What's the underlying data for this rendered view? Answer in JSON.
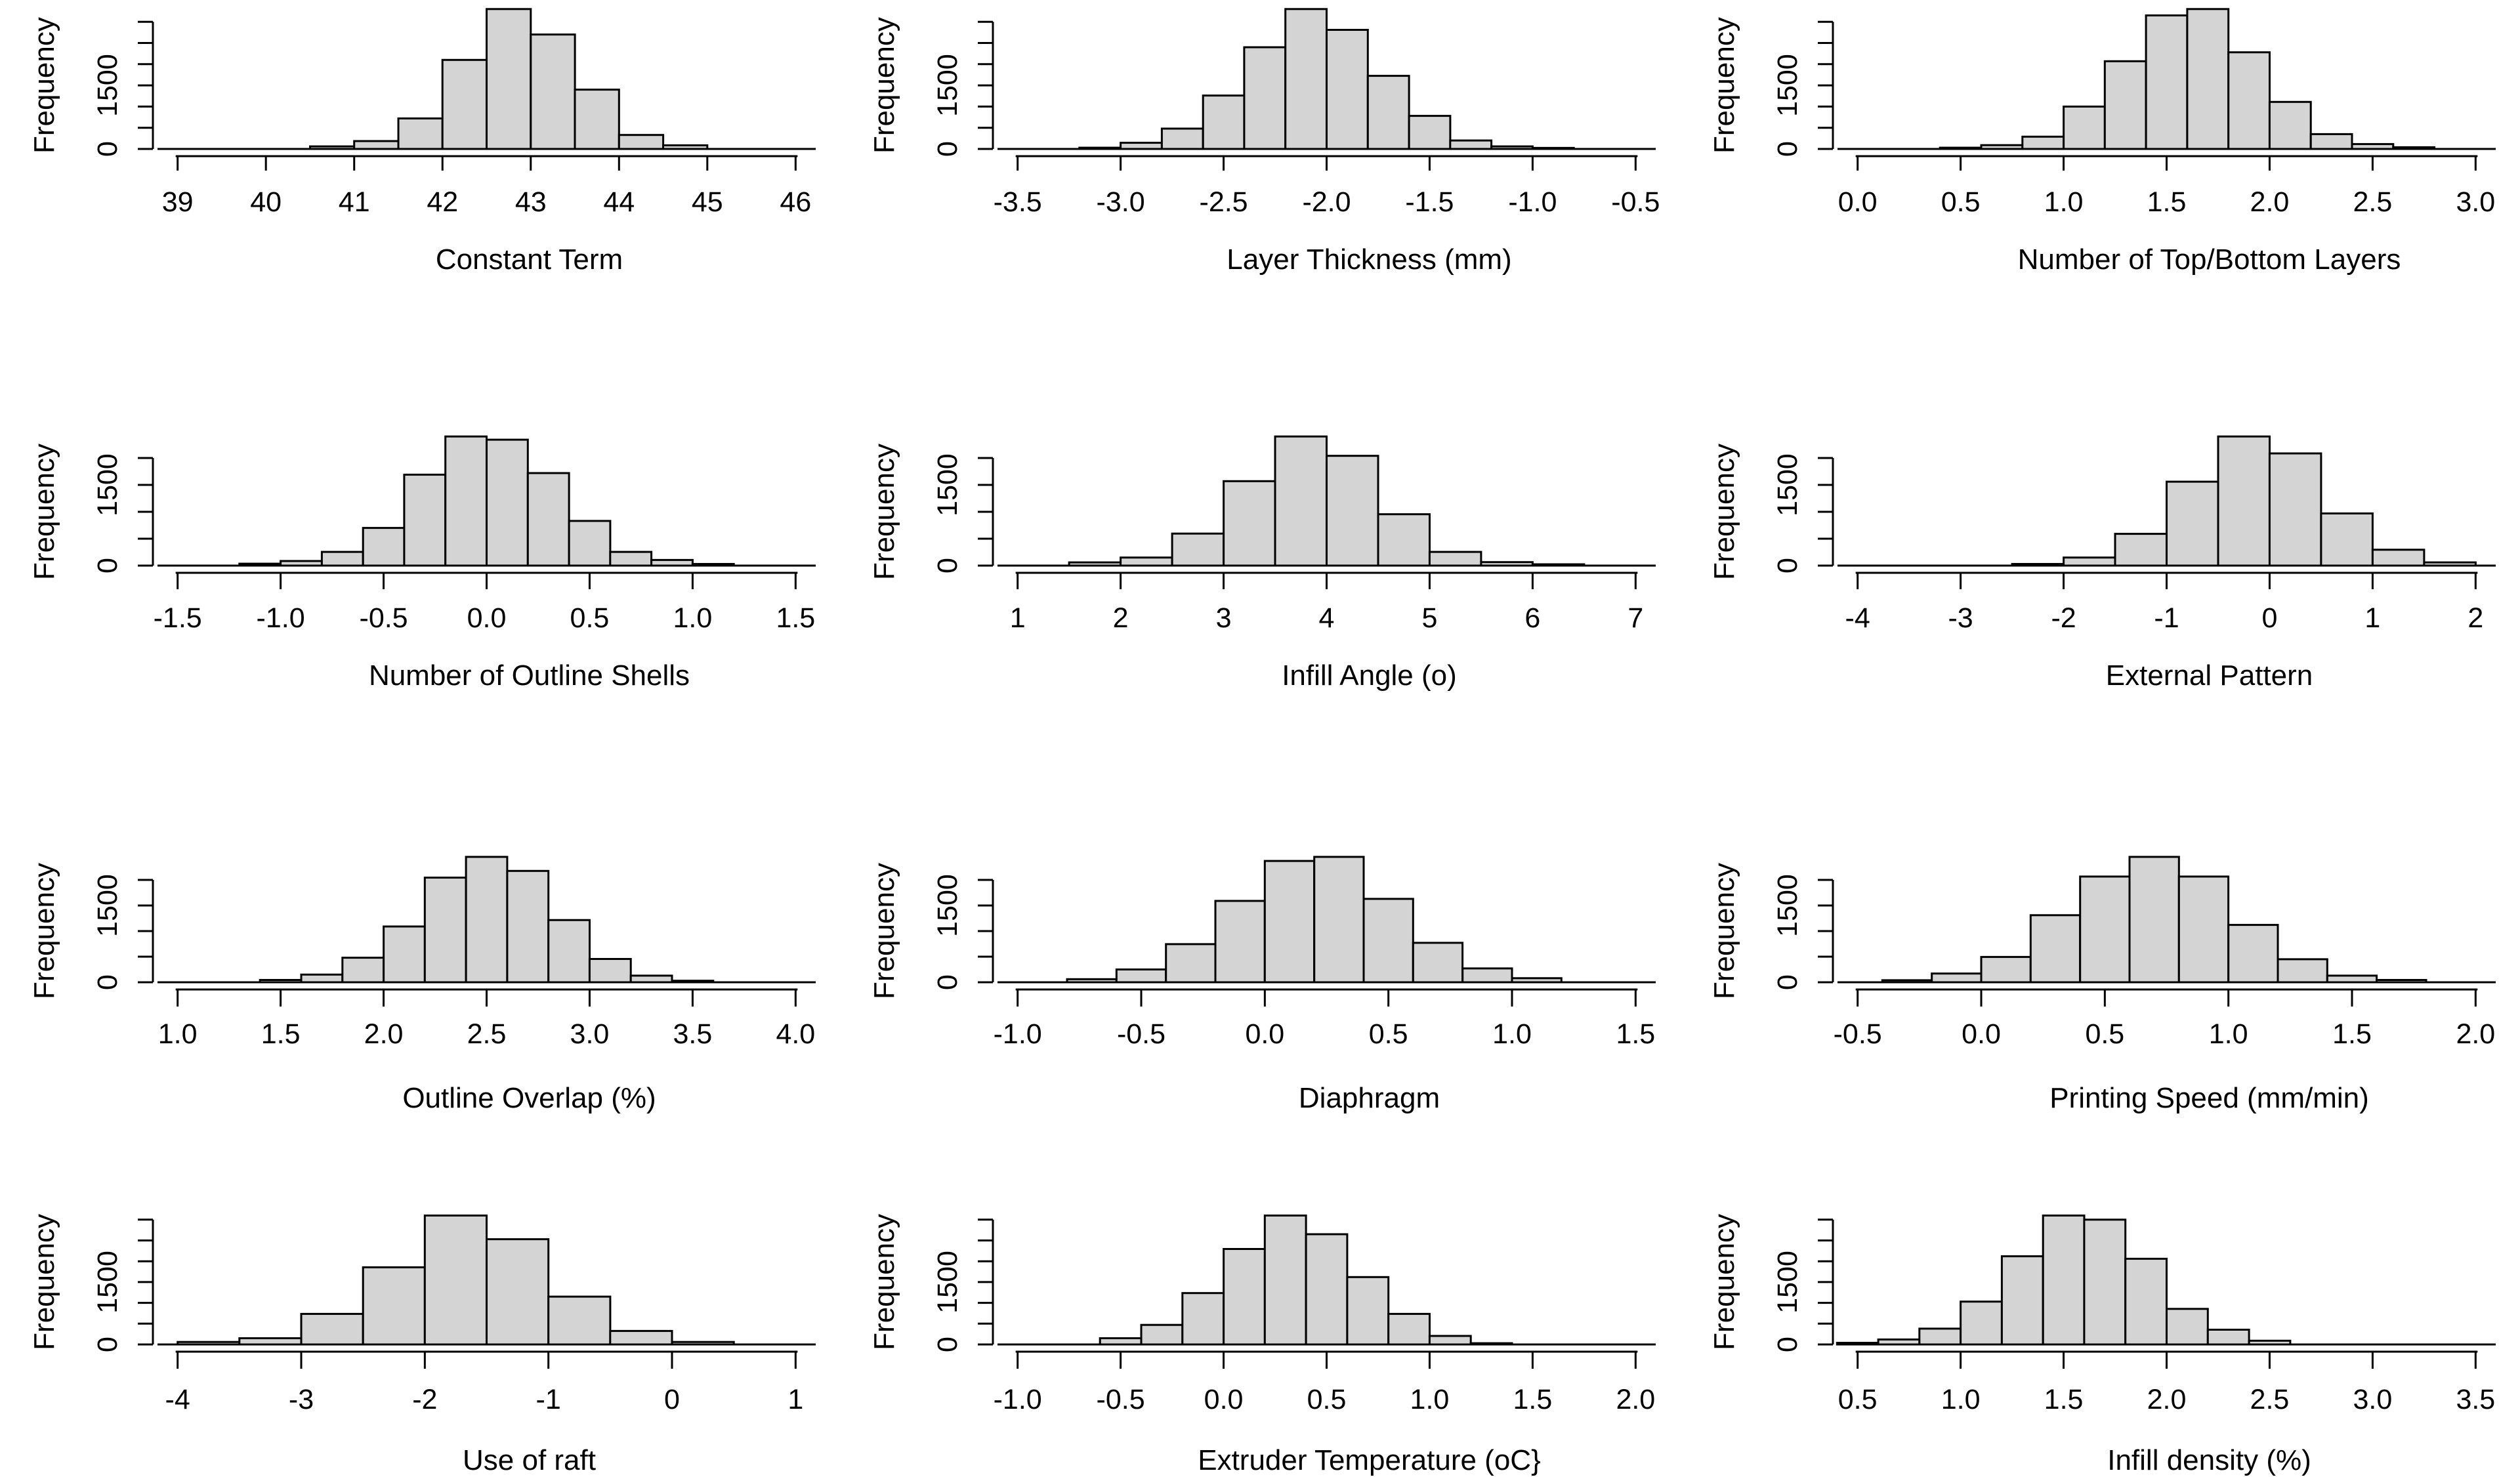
{
  "figure": {
    "kind": "histogram-grid",
    "rows": 4,
    "cols": 3,
    "background_color": "#ffffff",
    "bar_fill_color": "#d4d4d4",
    "line_color": "#000000"
  },
  "y_axis": {
    "label": "Frequency",
    "tick_step": 500,
    "tick_labels_shown": [
      "0",
      "1500"
    ],
    "tick_values_shown": [
      0,
      1500
    ]
  },
  "chart_data": [
    {
      "type": "bar",
      "subtype": "histogram",
      "xlabel": "Constant Term",
      "ylabel": "Frequency",
      "x_tick_labels": [
        "39",
        "40",
        "41",
        "42",
        "43",
        "44",
        "45",
        "46"
      ],
      "bin_start": 40.5,
      "bin_width": 0.5,
      "counts": [
        60,
        185,
        720,
        2100,
        3300,
        2700,
        1400,
        330,
        85
      ],
      "y_ticks_max": 3000,
      "y_tick_labels_shown": [
        "0",
        "1500"
      ]
    },
    {
      "type": "bar",
      "subtype": "histogram",
      "xlabel": "Layer Thickness (mm)",
      "ylabel": "Frequency",
      "x_tick_labels": [
        "-3.5",
        "-3.0",
        "-2.5",
        "-2.0",
        "-1.5",
        "-1.0",
        "-0.5"
      ],
      "bin_start": -3.2,
      "bin_width": 0.2,
      "counts": [
        30,
        145,
        480,
        1260,
        2400,
        3300,
        2810,
        1725,
        780,
        200,
        60,
        25
      ],
      "y_ticks_max": 3000,
      "y_tick_labels_shown": [
        "0",
        "1500"
      ]
    },
    {
      "type": "bar",
      "subtype": "histogram",
      "xlabel": "Number of Top/Bottom Layers",
      "ylabel": "Frequency",
      "x_tick_labels": [
        "0.0",
        "0.5",
        "1.0",
        "1.5",
        "2.0",
        "2.5",
        "3.0"
      ],
      "bin_start": 0.4,
      "bin_width": 0.2,
      "counts": [
        30,
        90,
        290,
        1000,
        2070,
        3150,
        3300,
        2280,
        1110,
        350,
        115,
        40
      ],
      "y_ticks_max": 3000,
      "y_tick_labels_shown": [
        "0",
        "1500"
      ]
    },
    {
      "type": "bar",
      "subtype": "histogram",
      "xlabel": "Number of Outline Shells",
      "ylabel": "Frequency",
      "x_tick_labels": [
        "-1.5",
        "-1.0",
        "-0.5",
        "0.0",
        "0.5",
        "1.0",
        "1.5"
      ],
      "bin_start": -1.2,
      "bin_width": 0.2,
      "counts": [
        35,
        85,
        255,
        700,
        1690,
        2400,
        2340,
        1720,
        830,
        255,
        105,
        30
      ],
      "y_ticks_max": 2000,
      "y_tick_labels_shown": [
        "0",
        "1500"
      ]
    },
    {
      "type": "bar",
      "subtype": "histogram",
      "xlabel": "Infill Angle (o)",
      "ylabel": "Frequency",
      "x_tick_labels": [
        "1",
        "2",
        "3",
        "4",
        "5",
        "6",
        "7"
      ],
      "bin_start": 1.5,
      "bin_width": 0.5,
      "counts": [
        60,
        150,
        595,
        1570,
        2400,
        2040,
        955,
        255,
        65,
        25
      ],
      "y_ticks_max": 2000,
      "y_tick_labels_shown": [
        "0",
        "1500"
      ]
    },
    {
      "type": "bar",
      "subtype": "histogram",
      "xlabel": "External Pattern",
      "ylabel": "Frequency",
      "x_tick_labels": [
        "-4",
        "-3",
        "-2",
        "-1",
        "0",
        "1",
        "2"
      ],
      "bin_start": -2.5,
      "bin_width": 0.5,
      "counts": [
        30,
        150,
        590,
        1560,
        2400,
        2085,
        970,
        295,
        60
      ],
      "y_ticks_max": 2000,
      "y_tick_labels_shown": [
        "0",
        "1500"
      ]
    },
    {
      "type": "bar",
      "subtype": "histogram",
      "xlabel": "Outline Overlap (%)",
      "ylabel": "Frequency",
      "x_tick_labels": [
        "1.0",
        "1.5",
        "2.0",
        "2.5",
        "3.0",
        "3.5",
        "4.0"
      ],
      "bin_start": 1.4,
      "bin_width": 0.2,
      "counts": [
        45,
        150,
        480,
        1090,
        2045,
        2450,
        2175,
        1215,
        455,
        130,
        30
      ],
      "y_ticks_max": 2000,
      "y_tick_labels_shown": [
        "0",
        "1500"
      ]
    },
    {
      "type": "bar",
      "subtype": "histogram",
      "xlabel": "Diaphragm",
      "ylabel": "Frequency",
      "x_tick_labels": [
        "-1.0",
        "-0.5",
        "0.0",
        "0.5",
        "1.0",
        "1.5"
      ],
      "bin_start": -0.8,
      "bin_width": 0.2,
      "counts": [
        60,
        250,
        745,
        1590,
        2370,
        2450,
        1630,
        770,
        270,
        80
      ],
      "y_ticks_max": 2000,
      "y_tick_labels_shown": [
        "0",
        "1500"
      ]
    },
    {
      "type": "bar",
      "subtype": "histogram",
      "xlabel": "Printing Speed (mm/min)",
      "ylabel": "Frequency",
      "x_tick_labels": [
        "-0.5",
        "0.0",
        "0.5",
        "1.0",
        "1.5",
        "2.0"
      ],
      "bin_start": -0.4,
      "bin_width": 0.2,
      "counts": [
        40,
        170,
        495,
        1310,
        2065,
        2450,
        2065,
        1120,
        450,
        130,
        45
      ],
      "y_ticks_max": 2000,
      "y_tick_labels_shown": [
        "0",
        "1500"
      ]
    },
    {
      "type": "bar",
      "subtype": "histogram",
      "xlabel": "Use of raft",
      "ylabel": "Frequency",
      "x_tick_labels": [
        "-4",
        "-3",
        "-2",
        "-1",
        "0",
        "1"
      ],
      "bin_start": -4.0,
      "bin_width": 0.5,
      "counts": [
        60,
        150,
        735,
        1855,
        3100,
        2530,
        1150,
        325,
        60
      ],
      "y_ticks_max": 3000,
      "y_tick_labels_shown": [
        "0",
        "1500"
      ]
    },
    {
      "type": "bar",
      "subtype": "histogram",
      "xlabel": "Extruder Temperature (oC}",
      "ylabel": "Frequency",
      "x_tick_labels": [
        "-1.0",
        "-0.5",
        "0.0",
        "0.5",
        "1.0",
        "1.5",
        "2.0"
      ],
      "bin_start": -0.6,
      "bin_width": 0.2,
      "counts": [
        150,
        470,
        1235,
        2295,
        3100,
        2650,
        1620,
        735,
        205,
        30
      ],
      "y_ticks_max": 3000,
      "y_tick_labels_shown": [
        "0",
        "1500"
      ]
    },
    {
      "type": "bar",
      "subtype": "histogram",
      "xlabel": "Infill density (%)",
      "ylabel": "Frequency",
      "x_tick_labels": [
        "0.5",
        "1.0",
        "1.5",
        "2.0",
        "2.5",
        "3.0",
        "3.5"
      ],
      "bin_start": 0.4,
      "bin_width": 0.2,
      "counts": [
        40,
        120,
        380,
        1030,
        2120,
        3100,
        3000,
        2060,
        855,
        355,
        90
      ],
      "y_ticks_max": 3000,
      "y_tick_labels_shown": [
        "0",
        "1500"
      ]
    }
  ]
}
